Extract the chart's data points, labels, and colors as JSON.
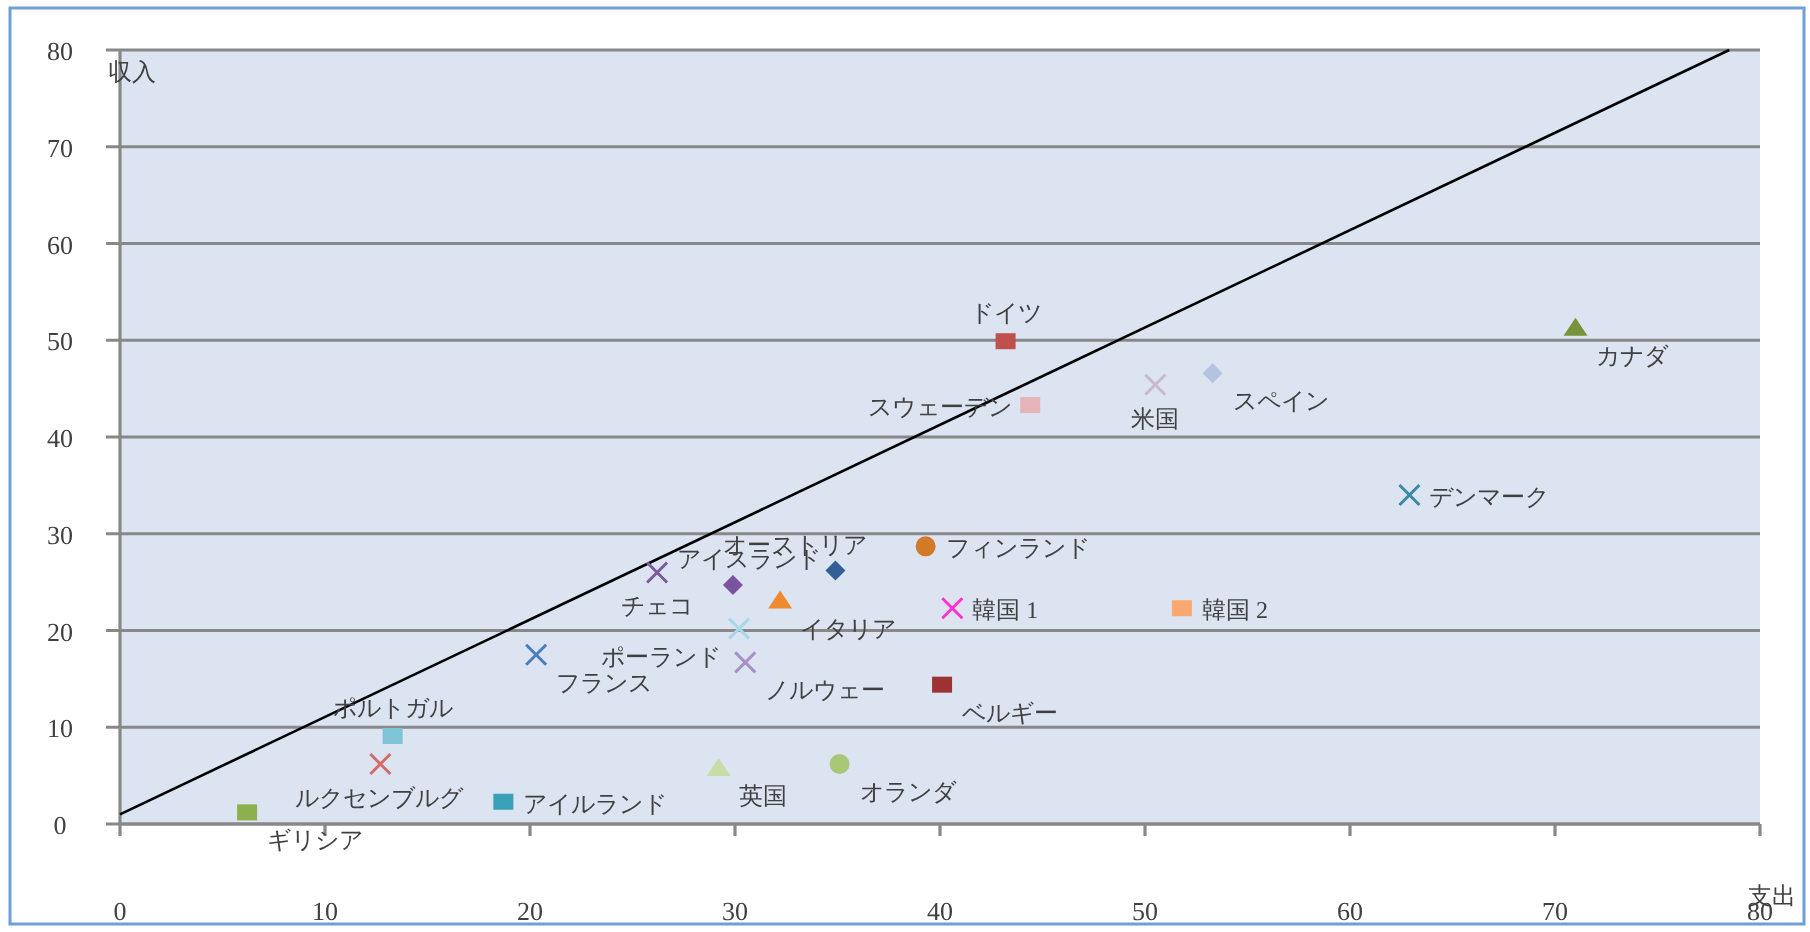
{
  "chart_data": {
    "type": "scatter",
    "xlabel": "支出",
    "ylabel": "収入",
    "xlim": [
      0,
      80
    ],
    "ylim": [
      0,
      80
    ],
    "xticks": [
      0,
      10,
      20,
      30,
      40,
      50,
      60,
      70,
      80
    ],
    "yticks": [
      0,
      10,
      20,
      30,
      40,
      50,
      60,
      70,
      80
    ],
    "grid": "y",
    "legend": false,
    "series": [
      {
        "type": "line",
        "color": "#000000",
        "x": [
          0,
          78.5
        ],
        "values": [
          1,
          80
        ],
        "marker": "none"
      },
      {
        "name": "ギリシア",
        "color": "#8db04e",
        "x": [
          6.2
        ],
        "values": [
          1.2
        ],
        "marker": "square"
      },
      {
        "name": "ポルトガル",
        "color": "#7ec3d6",
        "x": [
          13.3
        ],
        "values": [
          9.1
        ],
        "marker": "square"
      },
      {
        "name": "ルクセンブルグ",
        "color": "#d46b6b",
        "x": [
          12.7
        ],
        "values": [
          6.2
        ],
        "marker": "cross"
      },
      {
        "name": "アイルランド",
        "color": "#3aa0b8",
        "x": [
          18.7
        ],
        "values": [
          2.3
        ],
        "marker": "square"
      },
      {
        "name": "フランス",
        "color": "#4a7cc0",
        "x": [
          20.3
        ],
        "values": [
          17.5
        ],
        "marker": "cross"
      },
      {
        "name": "チェコ",
        "color": "#7a5a9a",
        "x": [
          26.2
        ],
        "values": [
          26.0
        ],
        "marker": "cross"
      },
      {
        "name": "アイスランド",
        "color": "#7a54a0",
        "x": [
          29.9
        ],
        "values": [
          24.7
        ],
        "marker": "diamond"
      },
      {
        "name": "イタリア",
        "color": "#f08a30",
        "x": [
          32.2
        ],
        "values": [
          23.1
        ],
        "marker": "triangle"
      },
      {
        "name": "ポーランド",
        "color": "#a8d8e8",
        "x": [
          30.2
        ],
        "values": [
          20.2
        ],
        "marker": "cross"
      },
      {
        "name": "ノルウェー",
        "color": "#a890c8",
        "x": [
          30.5
        ],
        "values": [
          16.7
        ],
        "marker": "cross"
      },
      {
        "name": "オーストリア",
        "color": "#345e98",
        "x": [
          34.9
        ],
        "values": [
          26.2
        ],
        "marker": "diamond"
      },
      {
        "name": "フィンランド",
        "color": "#d27a28",
        "x": [
          39.3
        ],
        "values": [
          28.7
        ],
        "marker": "circle"
      },
      {
        "name": "韓国 1",
        "color": "#ff33cc",
        "x": [
          40.6
        ],
        "values": [
          22.3
        ],
        "marker": "cross"
      },
      {
        "name": "ベルギー",
        "color": "#9c3232",
        "x": [
          40.1
        ],
        "values": [
          14.4
        ],
        "marker": "square"
      },
      {
        "name": "英国",
        "color": "#c8dca8",
        "x": [
          29.2
        ],
        "values": [
          5.8
        ],
        "marker": "triangle"
      },
      {
        "name": "オランダ",
        "color": "#a8c878",
        "x": [
          35.1
        ],
        "values": [
          6.2
        ],
        "marker": "circle"
      },
      {
        "name": "ドイツ",
        "color": "#c0504d",
        "x": [
          43.2
        ],
        "values": [
          49.9
        ],
        "marker": "square"
      },
      {
        "name": "スウェーデン",
        "color": "#e6b4b8",
        "x": [
          44.4
        ],
        "values": [
          43.3
        ],
        "marker": "square"
      },
      {
        "name": "米国",
        "color": "#c8b8d0",
        "x": [
          50.5
        ],
        "values": [
          45.4
        ],
        "marker": "cross"
      },
      {
        "name": "スペイン",
        "color": "#b4c4e0",
        "x": [
          53.3
        ],
        "values": [
          46.6
        ],
        "marker": "diamond"
      },
      {
        "name": "デンマーク",
        "color": "#3a8aa0",
        "x": [
          62.9
        ],
        "values": [
          34.0
        ],
        "marker": "cross"
      },
      {
        "name": "カナダ",
        "color": "#77933c",
        "x": [
          71.0
        ],
        "values": [
          51.3
        ],
        "marker": "triangle"
      },
      {
        "name": "韓国 2",
        "color": "#f9a870",
        "x": [
          51.8
        ],
        "values": [
          22.3
        ],
        "marker": "square"
      }
    ]
  }
}
